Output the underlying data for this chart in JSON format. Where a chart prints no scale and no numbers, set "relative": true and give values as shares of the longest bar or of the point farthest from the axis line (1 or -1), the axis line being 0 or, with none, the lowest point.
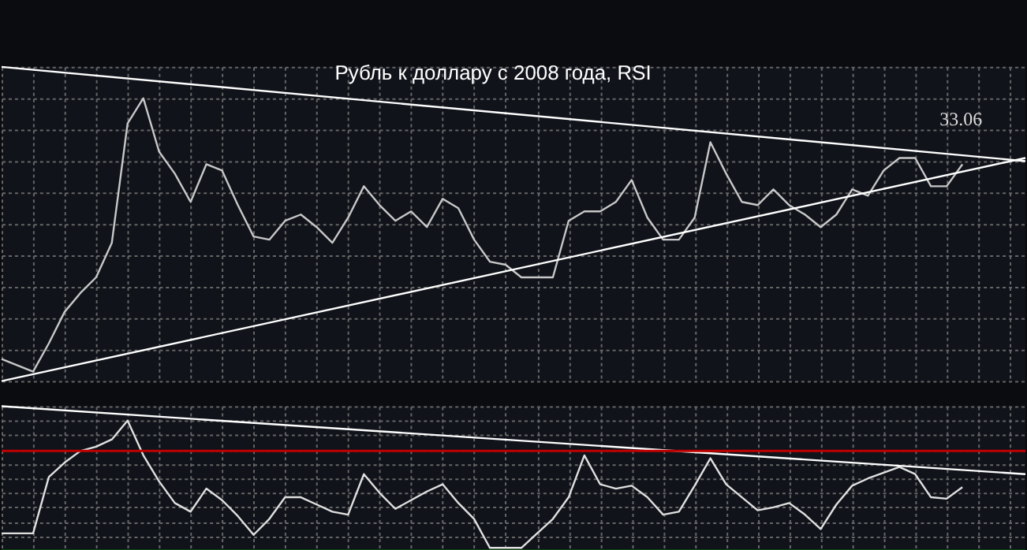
{
  "chart_data": [
    {
      "type": "line",
      "title": "Рубль к доллару с 2008 года, RSI",
      "relative": true,
      "grid": true,
      "categories": [
        null,
        null,
        null,
        null,
        null,
        null,
        null,
        null,
        null,
        null,
        null,
        null,
        null,
        null,
        null,
        null,
        null,
        null,
        null,
        null,
        null,
        null,
        null,
        null,
        null,
        null,
        null,
        null,
        null,
        null,
        null,
        null,
        null,
        null,
        null,
        null,
        null,
        null,
        null,
        null,
        null,
        null,
        null,
        null,
        null,
        null,
        null,
        null,
        null,
        null,
        null,
        null,
        null,
        null,
        null,
        null,
        null,
        null,
        null,
        null,
        null,
        null,
        null,
        null,
        null,
        null
      ],
      "annotations": [
        "33.06"
      ],
      "series": [
        {
          "color": "#c8c8c8",
          "values": [
            0.07,
            0.05,
            0.03,
            0.12,
            0.22,
            0.28,
            0.33,
            0.44,
            0.82,
            0.9,
            0.73,
            0.66,
            0.57,
            0.69,
            0.67,
            0.56,
            0.46,
            0.45,
            0.51,
            0.53,
            0.49,
            0.44,
            0.52,
            0.62,
            0.56,
            0.51,
            0.54,
            0.49,
            0.58,
            0.55,
            0.45,
            0.38,
            0.37,
            0.33,
            0.33,
            0.33,
            0.51,
            0.54,
            0.54,
            0.57,
            0.64,
            0.52,
            0.45,
            0.45,
            0.52,
            0.76,
            0.66,
            0.57,
            0.56,
            0.61,
            0.56,
            0.53,
            0.49,
            0.53,
            0.61,
            0.59,
            0.67,
            0.71,
            0.71,
            0.62,
            0.62,
            0.69,
            null,
            null,
            null,
            null
          ]
        },
        {
          "color": "#ffffff",
          "values": [
            1.0,
            null,
            null,
            null,
            null,
            null,
            null,
            null,
            null,
            null,
            null,
            null,
            null,
            null,
            null,
            null,
            null,
            null,
            null,
            null,
            null,
            null,
            null,
            null,
            null,
            null,
            null,
            null,
            null,
            null,
            null,
            null,
            null,
            null,
            null,
            null,
            null,
            null,
            null,
            null,
            null,
            null,
            null,
            null,
            null,
            null,
            null,
            null,
            null,
            null,
            null,
            null,
            null,
            null,
            null,
            null,
            null,
            null,
            null,
            null,
            null,
            null,
            null,
            null,
            null,
            0.7
          ]
        },
        {
          "color": "#ffffff",
          "values": [
            0.0,
            null,
            null,
            null,
            null,
            null,
            null,
            null,
            null,
            null,
            null,
            null,
            null,
            null,
            null,
            null,
            null,
            null,
            null,
            null,
            null,
            null,
            null,
            null,
            null,
            null,
            null,
            null,
            null,
            null,
            null,
            null,
            null,
            null,
            null,
            null,
            null,
            null,
            null,
            null,
            null,
            null,
            null,
            null,
            null,
            null,
            null,
            null,
            null,
            null,
            null,
            null,
            null,
            null,
            null,
            null,
            null,
            null,
            null,
            null,
            null,
            null,
            null,
            null,
            null,
            0.71
          ]
        }
      ]
    },
    {
      "type": "line",
      "relative": true,
      "grid": true,
      "categories": [
        null,
        null,
        null,
        null,
        null,
        null,
        null,
        null,
        null,
        null,
        null,
        null,
        null,
        null,
        null,
        null,
        null,
        null,
        null,
        null,
        null,
        null,
        null,
        null,
        null,
        null,
        null,
        null,
        null,
        null,
        null,
        null,
        null,
        null,
        null,
        null,
        null,
        null,
        null,
        null,
        null,
        null,
        null,
        null,
        null,
        null,
        null,
        null,
        null,
        null,
        null,
        null,
        null,
        null,
        null,
        null,
        null,
        null,
        null,
        null,
        null,
        null,
        null,
        null,
        null,
        null
      ],
      "ref_lines": [
        {
          "axis": "y",
          "value": 0.69,
          "color": "#c00000"
        },
        {
          "axis": "y",
          "value": 0.0,
          "color": "#008000"
        }
      ],
      "series": [
        {
          "color": "#e0e0e0",
          "values": [
            0.12,
            0.12,
            0.12,
            0.51,
            0.61,
            0.69,
            0.72,
            0.77,
            0.9,
            0.66,
            0.48,
            0.33,
            0.27,
            0.43,
            0.35,
            0.24,
            0.11,
            0.22,
            0.37,
            0.37,
            0.32,
            0.27,
            0.25,
            0.53,
            0.4,
            0.29,
            0.35,
            0.41,
            0.46,
            0.33,
            0.22,
            0.02,
            0.02,
            0.02,
            0.12,
            0.22,
            0.37,
            0.66,
            0.46,
            0.43,
            0.45,
            0.37,
            0.25,
            0.27,
            0.45,
            0.64,
            0.46,
            0.37,
            0.28,
            0.3,
            0.33,
            0.25,
            0.15,
            0.32,
            0.45,
            0.5,
            0.54,
            0.58,
            0.53,
            0.37,
            0.36,
            0.44,
            null,
            null,
            null,
            null
          ]
        },
        {
          "color": "#ffffff",
          "values": [
            1.0,
            null,
            null,
            null,
            null,
            null,
            null,
            null,
            null,
            null,
            null,
            null,
            null,
            null,
            null,
            null,
            null,
            null,
            null,
            null,
            null,
            null,
            null,
            null,
            null,
            null,
            null,
            null,
            null,
            null,
            null,
            null,
            null,
            null,
            null,
            null,
            null,
            null,
            null,
            null,
            null,
            null,
            null,
            null,
            null,
            null,
            null,
            null,
            null,
            null,
            null,
            null,
            null,
            null,
            null,
            null,
            null,
            null,
            null,
            null,
            null,
            null,
            null,
            null,
            null,
            0.53
          ]
        }
      ]
    }
  ]
}
